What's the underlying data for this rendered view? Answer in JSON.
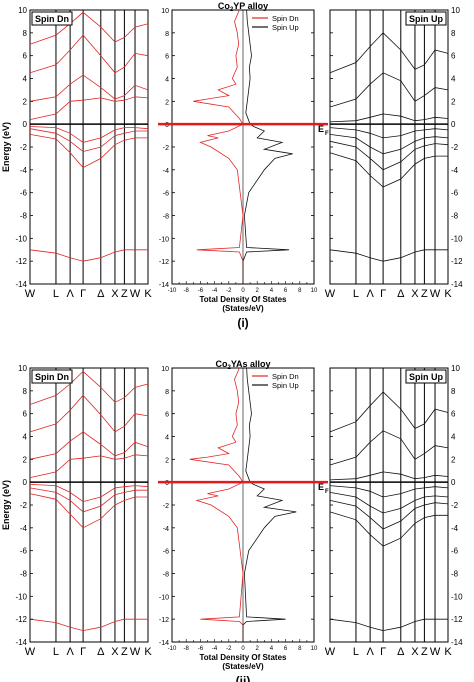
{
  "figure": {
    "colors": {
      "spin_dn": "#e32626",
      "spin_up": "#111111",
      "fermi": "#e31a1c",
      "axis": "#000000"
    },
    "band_ticks": [
      "W",
      "L",
      "Λ",
      "Γ",
      "Δ",
      "X",
      "Z",
      "W",
      "K"
    ],
    "energy_ticks": [
      -14,
      -12,
      -10,
      -8,
      -6,
      -4,
      -2,
      0,
      2,
      4,
      6,
      8,
      10
    ],
    "dos_x_ticks": [
      -10,
      -9,
      -8,
      -7,
      -6,
      -5,
      -4,
      -3,
      -2,
      -1,
      0,
      1,
      2,
      3,
      4,
      5,
      6,
      7,
      8,
      9,
      10
    ],
    "dos_x_tick_labels": [
      -10,
      -8,
      -6,
      -4,
      -2,
      0,
      2,
      4,
      6,
      8,
      10
    ],
    "panels": [
      {
        "id": "i",
        "caption": "(i)",
        "dos_title": "Co2YP alloy",
        "dos_title_main": "Co",
        "dos_title_sub": "2",
        "dos_title_rest": "YP alloy",
        "left_label": "Spin Dn",
        "right_label": "Spin Up",
        "ylabel": "Energy (eV)",
        "fermi_label": "E",
        "fermi_label_sub": "F",
        "fermi_zero": "0",
        "dos_xlabel_1": "Total Density Of States",
        "dos_xlabel_2": "(States/eV)",
        "legend": [
          "Spin Dn",
          "Spin Up"
        ]
      },
      {
        "id": "ii",
        "caption": "(ii)",
        "dos_title": "Co2YAs alloy",
        "dos_title_main": "Co",
        "dos_title_sub": "2",
        "dos_title_rest": "YAs alloy",
        "left_label": "Spin Dn",
        "right_label": "Spin Up",
        "ylabel": "Energy (eV)",
        "fermi_label": "E",
        "fermi_label_sub": "F",
        "fermi_zero": "0",
        "dos_xlabel_1": "Total Density Of States",
        "dos_xlabel_2": "(States/eV)",
        "legend": [
          "Spin Dn",
          "Spin Up"
        ]
      }
    ]
  },
  "chart_data": [
    {
      "type": "line",
      "title": "Co2YP alloy",
      "subplots": [
        {
          "kind": "band-structure",
          "label": "Spin Dn",
          "ylabel": "Energy (eV)",
          "ylim": [
            -14,
            10
          ],
          "xticks": [
            "W",
            "L",
            "Λ",
            "Γ",
            "Δ",
            "X",
            "Z",
            "W",
            "K"
          ],
          "fermi_level": 0,
          "bands": [
            [
              -11.0,
              -11.3,
              -11.7,
              -12.0,
              -11.7,
              -11.2,
              -11.0,
              -11.0,
              -11.0
            ],
            [
              -0.9,
              -1.3,
              -2.5,
              -3.8,
              -3.0,
              -1.8,
              -1.4,
              -1.2,
              -1.2
            ],
            [
              -0.4,
              -0.8,
              -1.5,
              -2.4,
              -2.0,
              -1.0,
              -0.8,
              -0.6,
              -0.6
            ],
            [
              -0.2,
              -0.3,
              -0.8,
              -1.6,
              -1.2,
              -0.5,
              -0.3,
              -0.3,
              -0.4
            ],
            [
              0.4,
              0.9,
              2.0,
              2.1,
              2.3,
              2.0,
              2.1,
              2.4,
              2.3
            ],
            [
              2.0,
              2.4,
              3.5,
              4.3,
              3.2,
              2.2,
              2.5,
              3.4,
              3.0
            ],
            [
              4.5,
              5.2,
              6.5,
              7.8,
              6.0,
              4.5,
              5.0,
              6.2,
              6.0
            ],
            [
              7.0,
              7.8,
              8.8,
              9.8,
              8.5,
              7.2,
              7.6,
              8.5,
              8.8
            ]
          ]
        },
        {
          "kind": "dos",
          "xlabel": "Total Density Of States (States/eV)",
          "xlim": [
            -10,
            10
          ],
          "ylim": [
            -14,
            10
          ],
          "series": [
            {
              "name": "Spin Dn",
              "energy": [
                -14,
                -12,
                -11.2,
                -11.0,
                -10.8,
                -8,
                -4,
                -3,
                -2,
                -1.6,
                -1.2,
                -1,
                -0.6,
                0,
                0.5,
                1.5,
                2,
                2.2,
                2.5,
                3,
                3.5,
                4,
                5,
                6,
                7,
                8,
                9,
                10
              ],
              "dos": [
                0,
                0,
                -0.5,
                -6.5,
                -0.5,
                0,
                -0.8,
                -2.0,
                -4.5,
                -6.0,
                -3.5,
                -5.0,
                -2.0,
                0,
                -0.5,
                -2.0,
                -7.0,
                -5.0,
                -2.0,
                -3.5,
                -1.0,
                -1.5,
                -0.8,
                -1.0,
                -0.6,
                -0.8,
                -1.2,
                -0.5
              ]
            },
            {
              "name": "Spin Up",
              "energy": [
                -14,
                -12,
                -11.2,
                -11.0,
                -10.8,
                -8,
                -6,
                -4,
                -3,
                -2.6,
                -2.2,
                -1.6,
                -1.2,
                -0.6,
                -0.2,
                0,
                1,
                2,
                3,
                4,
                5,
                6,
                7,
                8,
                9,
                10
              ],
              "dos": [
                0,
                0,
                0.5,
                6.5,
                0.5,
                0.2,
                0.8,
                3.0,
                4.5,
                7.0,
                3.0,
                5.5,
                2.0,
                3.0,
                1.5,
                1.0,
                0.4,
                0.6,
                0.8,
                1.0,
                0.9,
                1.2,
                1.0,
                0.8,
                0.6,
                0.5
              ]
            }
          ]
        },
        {
          "kind": "band-structure",
          "label": "Spin Up",
          "ylim": [
            -14,
            10
          ],
          "xticks": [
            "W",
            "L",
            "Λ",
            "Γ",
            "Δ",
            "X",
            "Z",
            "W",
            "K"
          ],
          "fermi_level": 0,
          "bands": [
            [
              -11.0,
              -11.3,
              -11.7,
              -12.0,
              -11.7,
              -11.2,
              -11.0,
              -11.0,
              -11.0
            ],
            [
              -2.5,
              -3.2,
              -4.5,
              -5.5,
              -4.8,
              -3.5,
              -3.0,
              -2.8,
              -2.8
            ],
            [
              -1.5,
              -2.0,
              -3.0,
              -4.0,
              -3.3,
              -2.2,
              -1.9,
              -1.7,
              -1.8
            ],
            [
              -0.9,
              -1.2,
              -2.0,
              -2.6,
              -2.2,
              -1.5,
              -1.2,
              -1.1,
              -1.2
            ],
            [
              -0.3,
              -0.5,
              -0.8,
              -1.2,
              -1.0,
              -0.6,
              -0.5,
              -0.4,
              -0.5
            ],
            [
              0.2,
              0.3,
              0.6,
              0.9,
              0.7,
              0.3,
              0.4,
              0.6,
              0.5
            ],
            [
              1.5,
              2.2,
              3.5,
              4.5,
              3.8,
              2.0,
              2.5,
              3.2,
              3.0
            ],
            [
              4.5,
              5.4,
              6.8,
              8.0,
              6.5,
              4.8,
              5.2,
              6.5,
              6.2
            ]
          ]
        }
      ]
    },
    {
      "type": "line",
      "title": "Co2YAs alloy",
      "subplots": [
        {
          "kind": "band-structure",
          "label": "Spin Dn",
          "ylabel": "Energy (eV)",
          "ylim": [
            -14,
            10
          ],
          "xticks": [
            "W",
            "L",
            "Λ",
            "Γ",
            "Δ",
            "X",
            "Z",
            "W",
            "K"
          ],
          "fermi_level": 0,
          "bands": [
            [
              -12.0,
              -12.3,
              -12.7,
              -13.0,
              -12.7,
              -12.2,
              -12.0,
              -12.0,
              -12.0
            ],
            [
              -1.0,
              -1.5,
              -2.8,
              -4.0,
              -3.2,
              -2.0,
              -1.6,
              -1.3,
              -1.3
            ],
            [
              -0.5,
              -0.9,
              -1.6,
              -2.6,
              -2.1,
              -1.1,
              -0.9,
              -0.7,
              -0.7
            ],
            [
              -0.2,
              -0.3,
              -0.9,
              -1.7,
              -1.3,
              -0.5,
              -0.4,
              -0.3,
              -0.4
            ],
            [
              0.4,
              0.9,
              2.0,
              2.1,
              2.3,
              2.0,
              2.1,
              2.4,
              2.3
            ],
            [
              2.0,
              2.5,
              3.6,
              4.4,
              3.3,
              2.3,
              2.6,
              3.5,
              3.1
            ],
            [
              4.4,
              5.1,
              6.3,
              7.6,
              5.9,
              4.4,
              4.9,
              6.0,
              5.8
            ],
            [
              6.8,
              7.6,
              8.6,
              9.7,
              8.3,
              7.0,
              7.4,
              8.3,
              8.6
            ]
          ]
        },
        {
          "kind": "dos",
          "xlabel": "Total Density Of States (States/eV)",
          "xlim": [
            -10,
            10
          ],
          "ylim": [
            -14,
            10
          ],
          "series": [
            {
              "name": "Spin Dn",
              "energy": [
                -14,
                -12.5,
                -12.2,
                -12.0,
                -11.8,
                -8,
                -4,
                -3,
                -2,
                -1.6,
                -1.2,
                -1,
                -0.6,
                0,
                0.5,
                1.5,
                2,
                2.2,
                2.5,
                3,
                3.5,
                4,
                5,
                6,
                7,
                8,
                9,
                10
              ],
              "dos": [
                0,
                0,
                -0.5,
                -6.0,
                -0.5,
                0,
                -0.8,
                -2.0,
                -4.5,
                -6.5,
                -3.5,
                -5.0,
                -2.0,
                0,
                -0.5,
                -2.0,
                -7.5,
                -5.0,
                -2.0,
                -3.5,
                -1.0,
                -1.5,
                -0.8,
                -1.0,
                -0.6,
                -0.8,
                -1.2,
                -0.5
              ]
            },
            {
              "name": "Spin Up",
              "energy": [
                -14,
                -12.5,
                -12.2,
                -12.0,
                -11.8,
                -8,
                -6,
                -4,
                -3,
                -2.6,
                -2.2,
                -1.6,
                -1.2,
                -0.6,
                -0.2,
                0,
                1,
                2,
                3,
                4,
                5,
                6,
                7,
                8,
                9,
                10
              ],
              "dos": [
                0,
                0,
                0.5,
                6.0,
                0.5,
                0.2,
                0.8,
                3.0,
                4.5,
                7.5,
                3.0,
                5.5,
                2.0,
                3.0,
                1.5,
                1.0,
                0.4,
                0.6,
                0.8,
                1.0,
                0.9,
                1.2,
                1.0,
                0.8,
                0.6,
                0.5
              ]
            }
          ]
        },
        {
          "kind": "band-structure",
          "label": "Spin Up",
          "ylim": [
            -14,
            10
          ],
          "xticks": [
            "W",
            "L",
            "Λ",
            "Γ",
            "Δ",
            "X",
            "Z",
            "W",
            "K"
          ],
          "fermi_level": 0,
          "bands": [
            [
              -12.0,
              -12.3,
              -12.7,
              -13.0,
              -12.7,
              -12.2,
              -12.0,
              -12.0,
              -12.0
            ],
            [
              -2.6,
              -3.3,
              -4.6,
              -5.6,
              -4.9,
              -3.6,
              -3.1,
              -2.9,
              -2.9
            ],
            [
              -1.6,
              -2.1,
              -3.1,
              -4.1,
              -3.4,
              -2.3,
              -2.0,
              -1.8,
              -1.9
            ],
            [
              -0.9,
              -1.3,
              -2.1,
              -2.7,
              -2.3,
              -1.6,
              -1.3,
              -1.2,
              -1.3
            ],
            [
              -0.3,
              -0.5,
              -0.8,
              -1.3,
              -1.0,
              -0.6,
              -0.5,
              -0.4,
              -0.5
            ],
            [
              0.2,
              0.3,
              0.6,
              0.9,
              0.7,
              0.3,
              0.4,
              0.6,
              0.5
            ],
            [
              1.5,
              2.2,
              3.5,
              4.5,
              3.8,
              2.0,
              2.5,
              3.2,
              3.0
            ],
            [
              4.4,
              5.3,
              6.7,
              7.9,
              6.4,
              4.7,
              5.1,
              6.4,
              6.1
            ]
          ]
        }
      ]
    }
  ]
}
